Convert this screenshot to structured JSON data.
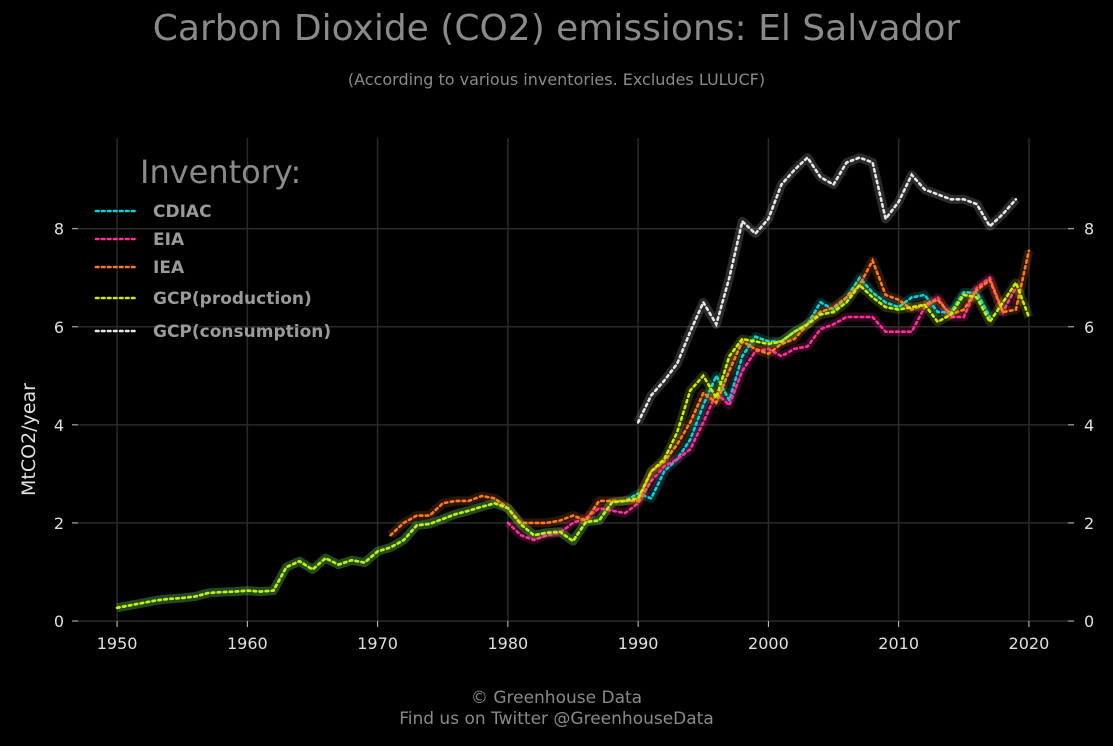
{
  "header": {
    "title": "Carbon Dioxide (CO2) emissions: El Salvador",
    "subtitle": "(According to various inventories. Excludes LULUCF)"
  },
  "footer": {
    "line1": "© Greenhouse Data",
    "line2": "Find us on Twitter @GreenhouseData"
  },
  "chart_data": {
    "type": "line",
    "title": "Carbon Dioxide (CO2) emissions: El Salvador",
    "subtitle": "(According to various inventories. Excludes LULUCF)",
    "xlabel": "",
    "ylabel": "MtCO2/year",
    "xlim": [
      1947,
      2023
    ],
    "ylim": [
      0,
      9.85
    ],
    "x_ticks": [
      1950,
      1960,
      1970,
      1980,
      1990,
      2000,
      2010,
      2020
    ],
    "y_ticks": [
      0,
      2,
      4,
      6,
      8
    ],
    "grid": true,
    "legend_title": "Inventory:",
    "legend_position": "top-left",
    "series": [
      {
        "name": "CDIAC",
        "color": "#00d8e0",
        "x_start": 1950,
        "values": [
          0.27,
          0.32,
          0.37,
          0.42,
          0.45,
          0.47,
          0.5,
          0.57,
          0.59,
          0.6,
          0.62,
          0.6,
          0.62,
          1.1,
          1.22,
          1.05,
          1.28,
          1.15,
          1.24,
          1.19,
          1.42,
          1.5,
          1.65,
          1.95,
          1.98,
          2.08,
          2.18,
          2.25,
          2.33,
          2.4,
          2.3,
          1.97,
          1.75,
          1.8,
          1.82,
          1.63,
          2.02,
          2.05,
          2.42,
          2.45,
          2.6,
          2.5,
          3.05,
          3.3,
          3.7,
          4.4,
          5.0,
          4.5,
          5.4,
          5.8,
          5.7,
          5.7,
          5.9,
          6.05,
          6.5,
          6.35,
          6.6,
          7.0,
          6.7,
          6.5,
          6.4,
          6.6,
          6.65,
          6.3,
          6.3,
          6.7,
          6.7,
          6.2
        ]
      },
      {
        "name": "EIA",
        "color": "#ff2e9a",
        "x_start": 1980,
        "values": [
          2.0,
          1.75,
          1.65,
          1.75,
          1.8,
          2.0,
          2.1,
          2.3,
          2.25,
          2.2,
          2.4,
          2.85,
          3.15,
          3.3,
          3.5,
          4.05,
          4.65,
          4.4,
          5.1,
          5.5,
          5.55,
          5.4,
          5.55,
          5.6,
          5.95,
          6.05,
          6.2,
          6.2,
          6.2,
          5.9,
          5.9,
          5.9,
          6.4,
          6.6,
          6.2,
          6.2,
          6.8,
          7.0,
          6.3,
          6.8
        ]
      },
      {
        "name": "IEA",
        "color": "#ff7a1a",
        "x_start": 1971,
        "values": [
          1.75,
          2.0,
          2.15,
          2.15,
          2.4,
          2.45,
          2.45,
          2.55,
          2.5,
          2.3,
          2.0,
          2.0,
          2.0,
          2.05,
          2.15,
          2.05,
          2.45,
          2.45,
          2.45,
          2.45,
          3.05,
          3.25,
          3.6,
          4.05,
          4.65,
          4.45,
          5.1,
          5.7,
          5.55,
          5.45,
          5.65,
          5.75,
          6.05,
          6.3,
          6.4,
          6.6,
          6.85,
          7.35,
          6.65,
          6.55,
          6.35,
          6.45,
          6.55,
          6.25,
          6.35,
          6.75,
          6.95,
          6.3,
          6.35,
          7.55
        ]
      },
      {
        "name": "GCP(production)",
        "color": "#c8f000",
        "x_start": 1950,
        "values": [
          0.27,
          0.32,
          0.37,
          0.42,
          0.45,
          0.47,
          0.5,
          0.57,
          0.59,
          0.6,
          0.62,
          0.6,
          0.62,
          1.1,
          1.22,
          1.05,
          1.28,
          1.15,
          1.24,
          1.19,
          1.42,
          1.5,
          1.65,
          1.95,
          1.98,
          2.08,
          2.18,
          2.25,
          2.33,
          2.4,
          2.3,
          1.97,
          1.75,
          1.8,
          1.82,
          1.63,
          2.02,
          2.05,
          2.42,
          2.45,
          2.5,
          3.05,
          3.3,
          3.85,
          4.7,
          5.0,
          4.55,
          5.4,
          5.75,
          5.7,
          5.65,
          5.7,
          5.9,
          6.05,
          6.25,
          6.3,
          6.5,
          6.85,
          6.6,
          6.4,
          6.35,
          6.4,
          6.45,
          6.1,
          6.25,
          6.65,
          6.6,
          6.1,
          6.5,
          6.9,
          6.2
        ]
      },
      {
        "name": "GCP(consumption)",
        "color": "#e8e8e8",
        "x_start": 1990,
        "values": [
          4.05,
          4.6,
          4.9,
          5.25,
          5.9,
          6.5,
          6.05,
          7.0,
          8.15,
          7.9,
          8.2,
          8.9,
          9.2,
          9.45,
          9.05,
          8.9,
          9.35,
          9.45,
          9.35,
          8.2,
          8.55,
          9.1,
          8.8,
          8.7,
          8.6,
          8.6,
          8.5,
          8.05,
          8.3,
          8.6
        ]
      }
    ]
  }
}
